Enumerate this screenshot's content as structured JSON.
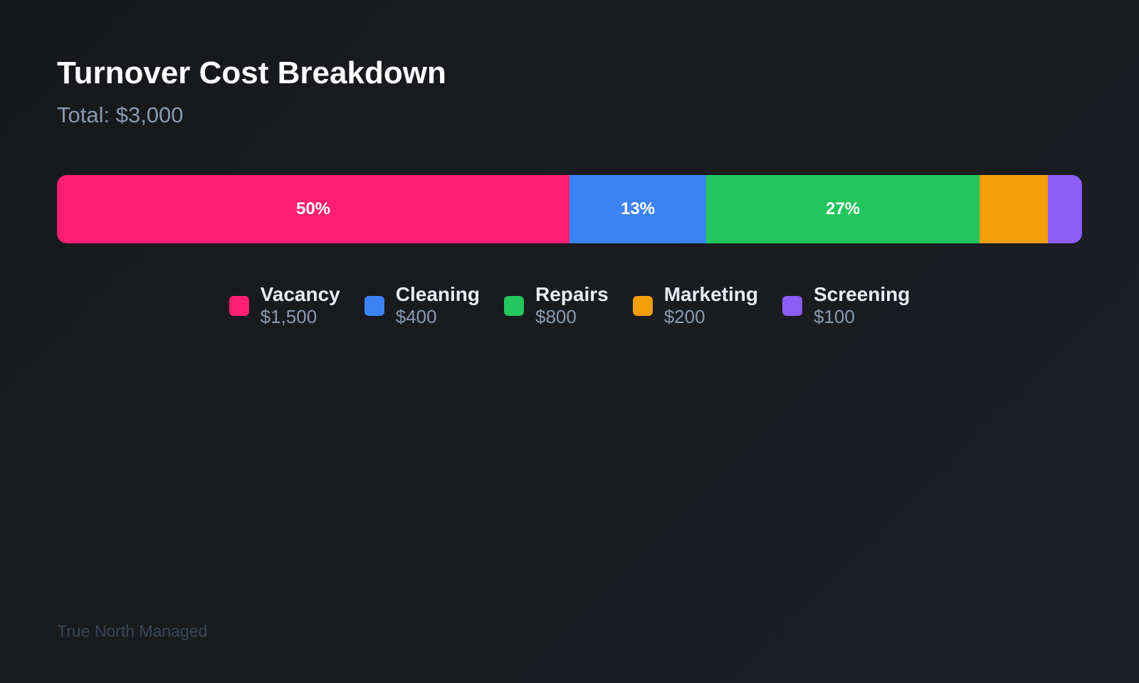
{
  "chart_data": {
    "type": "bar",
    "orientation": "stacked-horizontal-100",
    "title": "Turnover Cost Breakdown",
    "subtitle": "Total: $3,000",
    "categories": [
      "Vacancy",
      "Cleaning",
      "Repairs",
      "Marketing",
      "Screening"
    ],
    "values": [
      1500,
      400,
      800,
      200,
      100
    ],
    "value_labels": [
      "$1,500",
      "$400",
      "$800",
      "$200",
      "$100"
    ],
    "percent_labels": [
      "50%",
      "13%",
      "27%",
      "",
      ""
    ],
    "colors": [
      "#ff1f72",
      "#3b82f6",
      "#22c55e",
      "#f59e0b",
      "#8b5cf6"
    ],
    "legend": "bottom-center"
  },
  "footer": "True North Managed"
}
